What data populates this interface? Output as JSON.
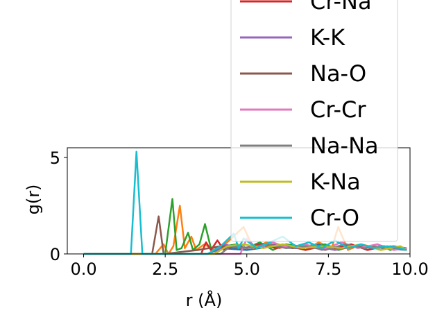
{
  "chart_data": {
    "type": "line",
    "xlabel": "r (Å)",
    "ylabel": "g(r)",
    "xlim": [
      -0.5,
      10.0
    ],
    "ylim": [
      0,
      5.5
    ],
    "xticks": [
      "0.0",
      "2.5",
      "5.0",
      "7.5",
      "10.0"
    ],
    "xtick_values": [
      0.0,
      2.5,
      5.0,
      7.5,
      10.0
    ],
    "yticks": [
      "0",
      "5"
    ],
    "ytick_values": [
      0,
      5
    ],
    "grid": false,
    "legend_position": "upper-right",
    "series": [
      {
        "name": "",
        "color": "#1f77b4",
        "x": [
          0,
          1.5,
          3.0,
          3.8,
          4.2,
          5.0,
          5.8,
          6.4,
          7.2,
          7.9,
          8.6,
          9.2,
          9.9
        ],
        "y": [
          0,
          0,
          0,
          0,
          0.3,
          0.2,
          0.4,
          0.3,
          0.5,
          0.3,
          0.4,
          0.3,
          0.2
        ]
      },
      {
        "name": "",
        "color": "#ff7f0e",
        "x": [
          0,
          2.2,
          2.45,
          2.6,
          2.75,
          2.95,
          3.1,
          3.3,
          3.45,
          3.7,
          4.0,
          4.4,
          4.9,
          5.2,
          5.6,
          6.0,
          6.4,
          6.8,
          7.2,
          7.6,
          7.8,
          8.1,
          8.5,
          9.0,
          9.4,
          9.9
        ],
        "y": [
          0,
          0,
          0.5,
          0,
          0.4,
          2.5,
          0.3,
          0.9,
          0.2,
          0.5,
          0.2,
          0.6,
          1.4,
          0.3,
          0.6,
          0.3,
          0.5,
          0.2,
          0.6,
          0.3,
          1.4,
          0.2,
          0.5,
          0.3,
          0.4,
          0.2
        ]
      },
      {
        "name": "",
        "color": "#2ca02c",
        "x": [
          0,
          2.5,
          2.72,
          2.85,
          3.0,
          3.2,
          3.35,
          3.55,
          3.72,
          3.9,
          4.3,
          4.7,
          5.0,
          5.4,
          5.8,
          6.2,
          6.6,
          7.0,
          7.4,
          7.8,
          8.2,
          8.6,
          9.0,
          9.4,
          9.7,
          9.9
        ],
        "y": [
          0,
          0,
          2.85,
          0.2,
          0.3,
          1.1,
          0.2,
          0.5,
          1.55,
          0.3,
          0.4,
          0.5,
          0.3,
          0.6,
          0.2,
          0.5,
          0.4,
          0.3,
          0.5,
          0.2,
          0.4,
          0.3,
          0.5,
          0.2,
          0.4,
          0.2
        ]
      },
      {
        "name": "Cr-Na",
        "color": "#d62728",
        "x": [
          0,
          3.6,
          3.75,
          3.9,
          4.1,
          4.3,
          4.6,
          5.0,
          5.4,
          5.9,
          6.3,
          6.8,
          7.3,
          7.7,
          8.2,
          8.7,
          9.2,
          9.6,
          9.9
        ],
        "y": [
          0,
          0,
          0.6,
          0.2,
          0.7,
          0.2,
          0.4,
          0.3,
          0.5,
          0.3,
          0.4,
          0.2,
          0.4,
          0.3,
          0.5,
          0.2,
          0.4,
          0.3,
          0.3
        ]
      },
      {
        "name": "K-K",
        "color": "#9467bd",
        "x": [
          0,
          4.0,
          4.3,
          4.8,
          5.3,
          5.9,
          6.5,
          7.1,
          7.7,
          8.3,
          8.9,
          9.5,
          9.9
        ],
        "y": [
          0,
          0,
          0.5,
          0.3,
          0.4,
          0.5,
          0.3,
          0.4,
          0.2,
          0.4,
          0.3,
          0.4,
          0.3
        ]
      },
      {
        "name": "Na-O",
        "color": "#8c564b",
        "x": [
          0,
          2.1,
          2.3,
          2.45,
          3.5,
          4.2,
          4.9,
          5.6,
          6.4,
          7.1,
          7.9,
          8.7,
          9.4,
          9.9
        ],
        "y": [
          0,
          0,
          1.95,
          0,
          0.2,
          0.4,
          0.3,
          0.5,
          0.3,
          0.4,
          0.3,
          0.4,
          0.3,
          0.3
        ]
      },
      {
        "name": "Cr-Cr",
        "color": "#e377c2",
        "x": [
          0,
          4.8,
          5.0,
          5.3,
          5.8,
          6.3,
          6.8,
          7.3,
          7.9,
          8.4,
          9.0,
          9.5,
          9.9
        ],
        "y": [
          0,
          0,
          0.8,
          0.3,
          0.6,
          0.3,
          0.5,
          0.2,
          0.6,
          0.3,
          0.5,
          0.2,
          0.3
        ]
      },
      {
        "name": "Na-Na",
        "color": "#7f7f7f",
        "x": [
          0,
          4.2,
          4.5,
          5.0,
          5.6,
          6.2,
          6.8,
          7.4,
          8.0,
          8.6,
          9.2,
          9.9
        ],
        "y": [
          0,
          0,
          0.4,
          0.3,
          0.5,
          0.3,
          0.4,
          0.2,
          0.5,
          0.3,
          0.4,
          0.2
        ]
      },
      {
        "name": "K-Na",
        "color": "#bcbd22",
        "x": [
          0,
          4.0,
          4.4,
          4.9,
          5.5,
          6.1,
          6.7,
          7.3,
          7.9,
          8.5,
          9.1,
          9.7,
          9.9
        ],
        "y": [
          0,
          0,
          0.4,
          0.5,
          0.3,
          0.5,
          0.3,
          0.4,
          0.3,
          0.5,
          0.2,
          0.4,
          0.2
        ]
      },
      {
        "name": "Cr-O",
        "color": "#17becf",
        "x": [
          0,
          1.45,
          1.62,
          1.8,
          3.8,
          4.2,
          4.6,
          4.75,
          4.9,
          5.3,
          5.7,
          6.1,
          6.5,
          6.9,
          7.3,
          7.7,
          8.1,
          8.5,
          8.9,
          9.3,
          9.7,
          9.9
        ],
        "y": [
          0,
          0,
          5.3,
          0,
          0,
          0.4,
          1.05,
          0.3,
          0.8,
          0.3,
          0.6,
          0.9,
          0.4,
          0.6,
          0.3,
          0.7,
          0.3,
          0.5,
          0.3,
          0.4,
          0.3,
          0.2
        ]
      }
    ]
  }
}
